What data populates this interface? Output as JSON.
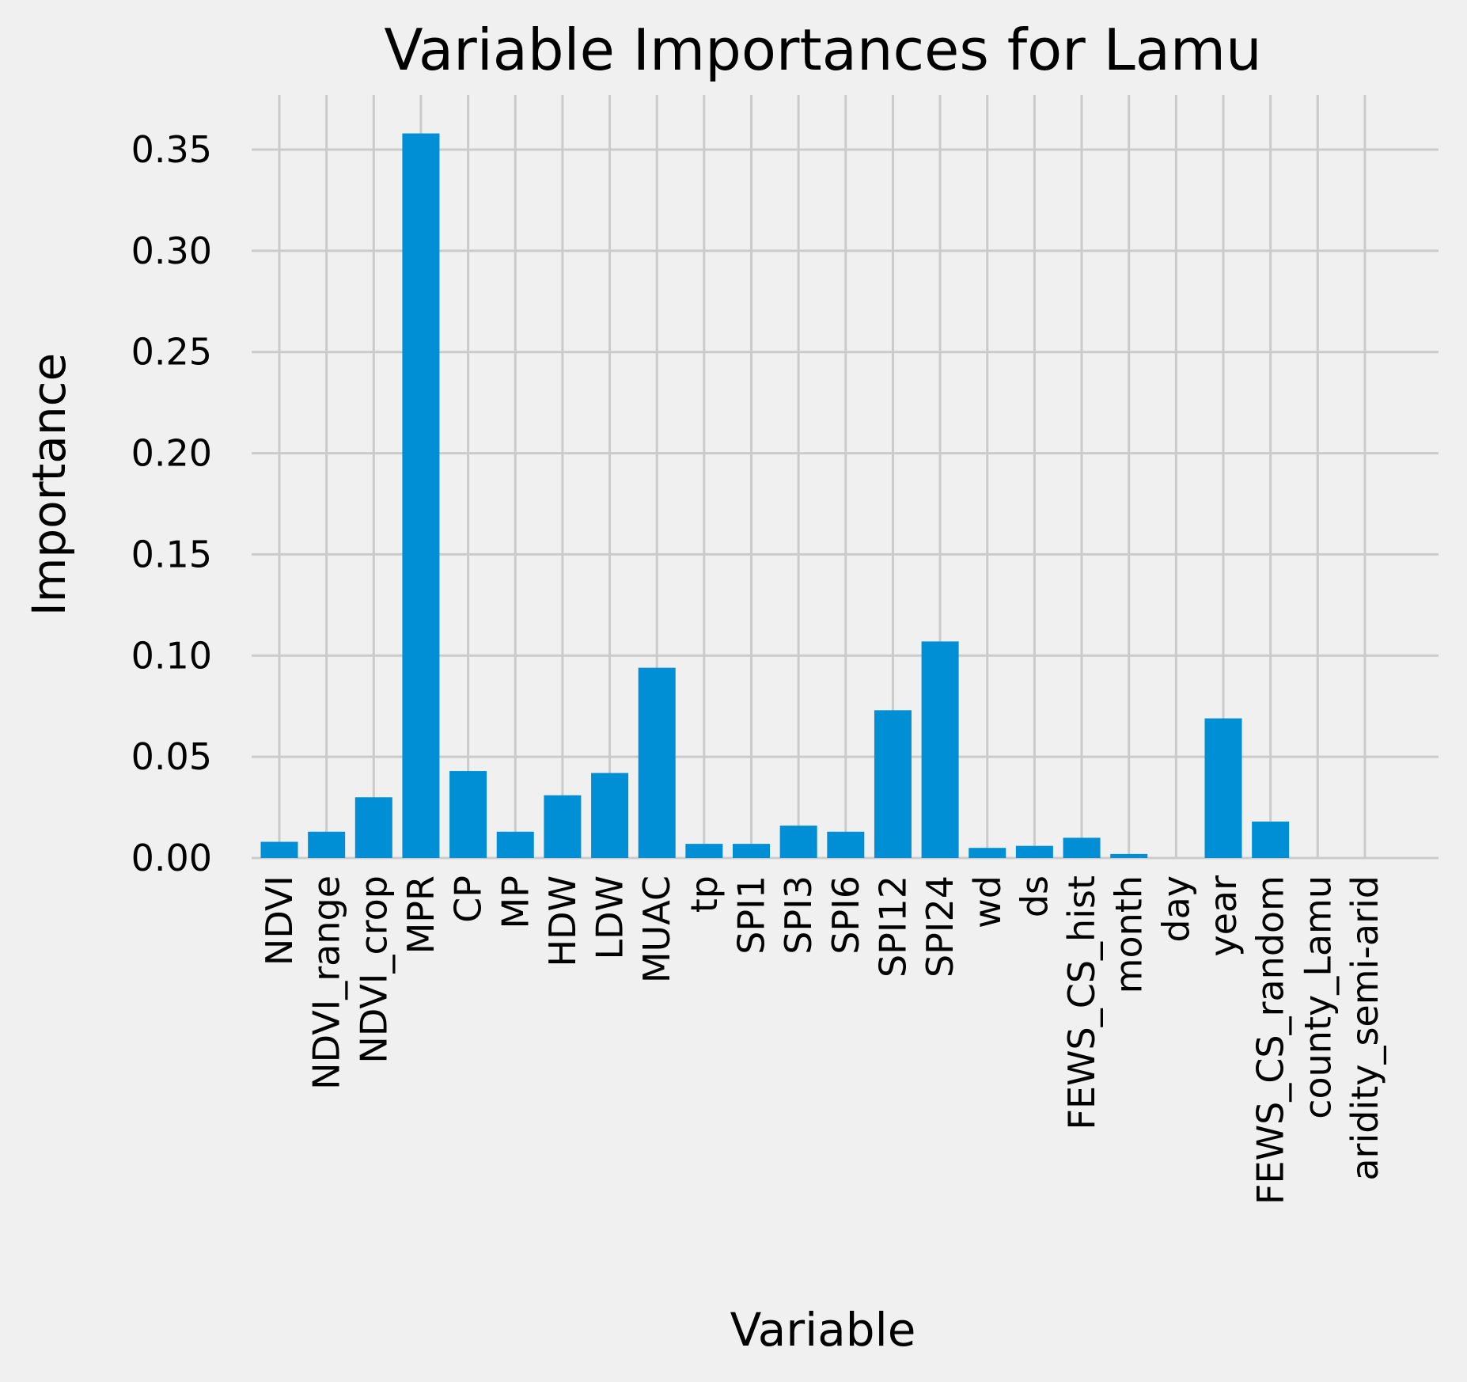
{
  "chart_data": {
    "type": "bar",
    "title": "Variable Importances for Lamu",
    "xlabel": "Variable",
    "ylabel": "Importance",
    "ylim": [
      0,
      0.37
    ],
    "yticks": [
      "0.00",
      "0.05",
      "0.10",
      "0.15",
      "0.20",
      "0.25",
      "0.30",
      "0.35"
    ],
    "ytick_values": [
      0,
      0.05,
      0.1,
      0.15,
      0.2,
      0.25,
      0.3,
      0.35
    ],
    "grid": true,
    "bar_color": "#008fd5",
    "background": "#f0f0f0",
    "categories": [
      "NDVI",
      "NDVI_range",
      "NDVI_crop",
      "MPR",
      "CP",
      "MP",
      "HDW",
      "LDW",
      "MUAC",
      "tp",
      "SPI1",
      "SPI3",
      "SPI6",
      "SPI12",
      "SPI24",
      "wd",
      "ds",
      "FEWS_CS_hist",
      "month",
      "day",
      "year",
      "FEWS_CS_random",
      "county_Lamu",
      "aridity_semi-arid"
    ],
    "values": [
      0.008,
      0.013,
      0.03,
      0.358,
      0.043,
      0.013,
      0.031,
      0.042,
      0.094,
      0.007,
      0.007,
      0.016,
      0.013,
      0.073,
      0.107,
      0.005,
      0.006,
      0.01,
      0.002,
      0.0,
      0.069,
      0.018,
      0.0,
      0.0
    ]
  }
}
